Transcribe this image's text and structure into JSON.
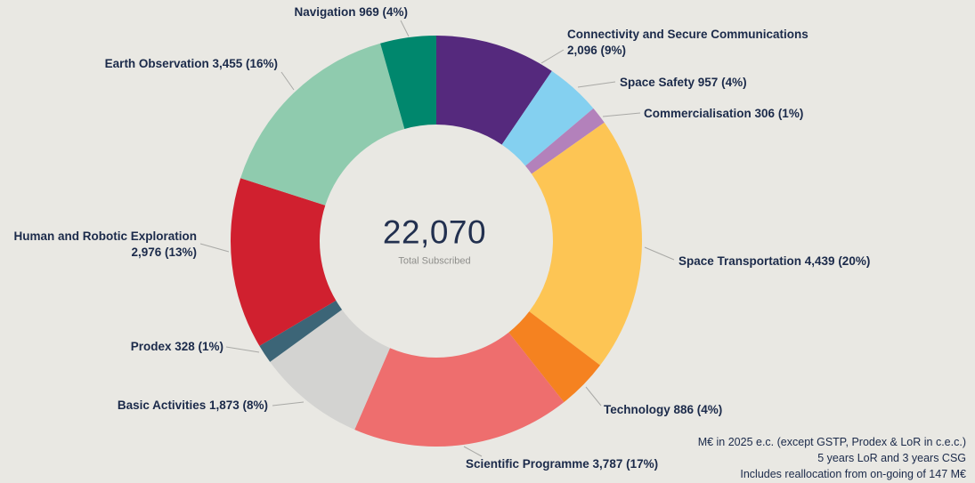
{
  "chart_data": {
    "type": "pie",
    "variant": "donut",
    "title": "",
    "background": "#e9e8e3",
    "text_color": "#1b2a4a",
    "legend": "none (labels with leader lines around donut)",
    "center": {
      "total": "22,070",
      "subtitle": "Total Subscribed"
    },
    "order": "clockwise from 12 o'clock",
    "segments": [
      {
        "key": "connectivity-and-secure-communications",
        "name": "Connectivity and Secure Communications",
        "value": 2096,
        "pct": "9%",
        "color": "#55297d",
        "display": "Connectivity and Secure Communications\n2,096 (9%)"
      },
      {
        "key": "space-safety",
        "name": "Space Safety",
        "value": 957,
        "pct": "4%",
        "color": "#84d0f0",
        "display": "Space Safety 957 (4%)"
      },
      {
        "key": "commercialisation",
        "name": "Commercialisation",
        "value": 306,
        "pct": "1%",
        "color": "#b381bb",
        "display": "Commercialisation 306 (1%)"
      },
      {
        "key": "space-transportation",
        "name": "Space Transportation",
        "value": 4439,
        "pct": "20%",
        "color": "#fdc554",
        "display": "Space Transportation 4,439 (20%)"
      },
      {
        "key": "technology",
        "name": "Technology",
        "value": 886,
        "pct": "4%",
        "color": "#f58220",
        "display": "Technology 886 (4%)"
      },
      {
        "key": "scientific-programme",
        "name": "Scientific Programme",
        "value": 3787,
        "pct": "17%",
        "color": "#ee6e6e",
        "display": "Scientific Programme 3,787 (17%)"
      },
      {
        "key": "basic-activities",
        "name": "Basic Activities",
        "value": 1873,
        "pct": "8%",
        "color": "#d3d3d1",
        "display": "Basic Activities 1,873 (8%)"
      },
      {
        "key": "prodex",
        "name": "Prodex",
        "value": 328,
        "pct": "1%",
        "color": "#3c6577",
        "display": "Prodex 328 (1%)"
      },
      {
        "key": "human-and-robotic-exploration",
        "name": "Human and Robotic Exploration",
        "value": 2976,
        "pct": "13%",
        "color": "#d0202f",
        "display": "Human and Robotic Exploration\n2,976 (13%)"
      },
      {
        "key": "earth-observation",
        "name": "Earth Observation",
        "value": 3455,
        "pct": "16%",
        "color": "#8fcbae",
        "display": "Earth Observation 3,455 (16%)"
      },
      {
        "key": "navigation",
        "name": "Navigation",
        "value": 969,
        "pct": "4%",
        "color": "#00876d",
        "display": "Navigation 969 (4%)"
      }
    ]
  },
  "notes": [
    "M€ in 2025 e.c. (except GSTP, Prodex & LoR in c.e.c.)",
    "5 years LoR and 3 years CSG",
    "Includes reallocation from on-going of 147 M€"
  ]
}
